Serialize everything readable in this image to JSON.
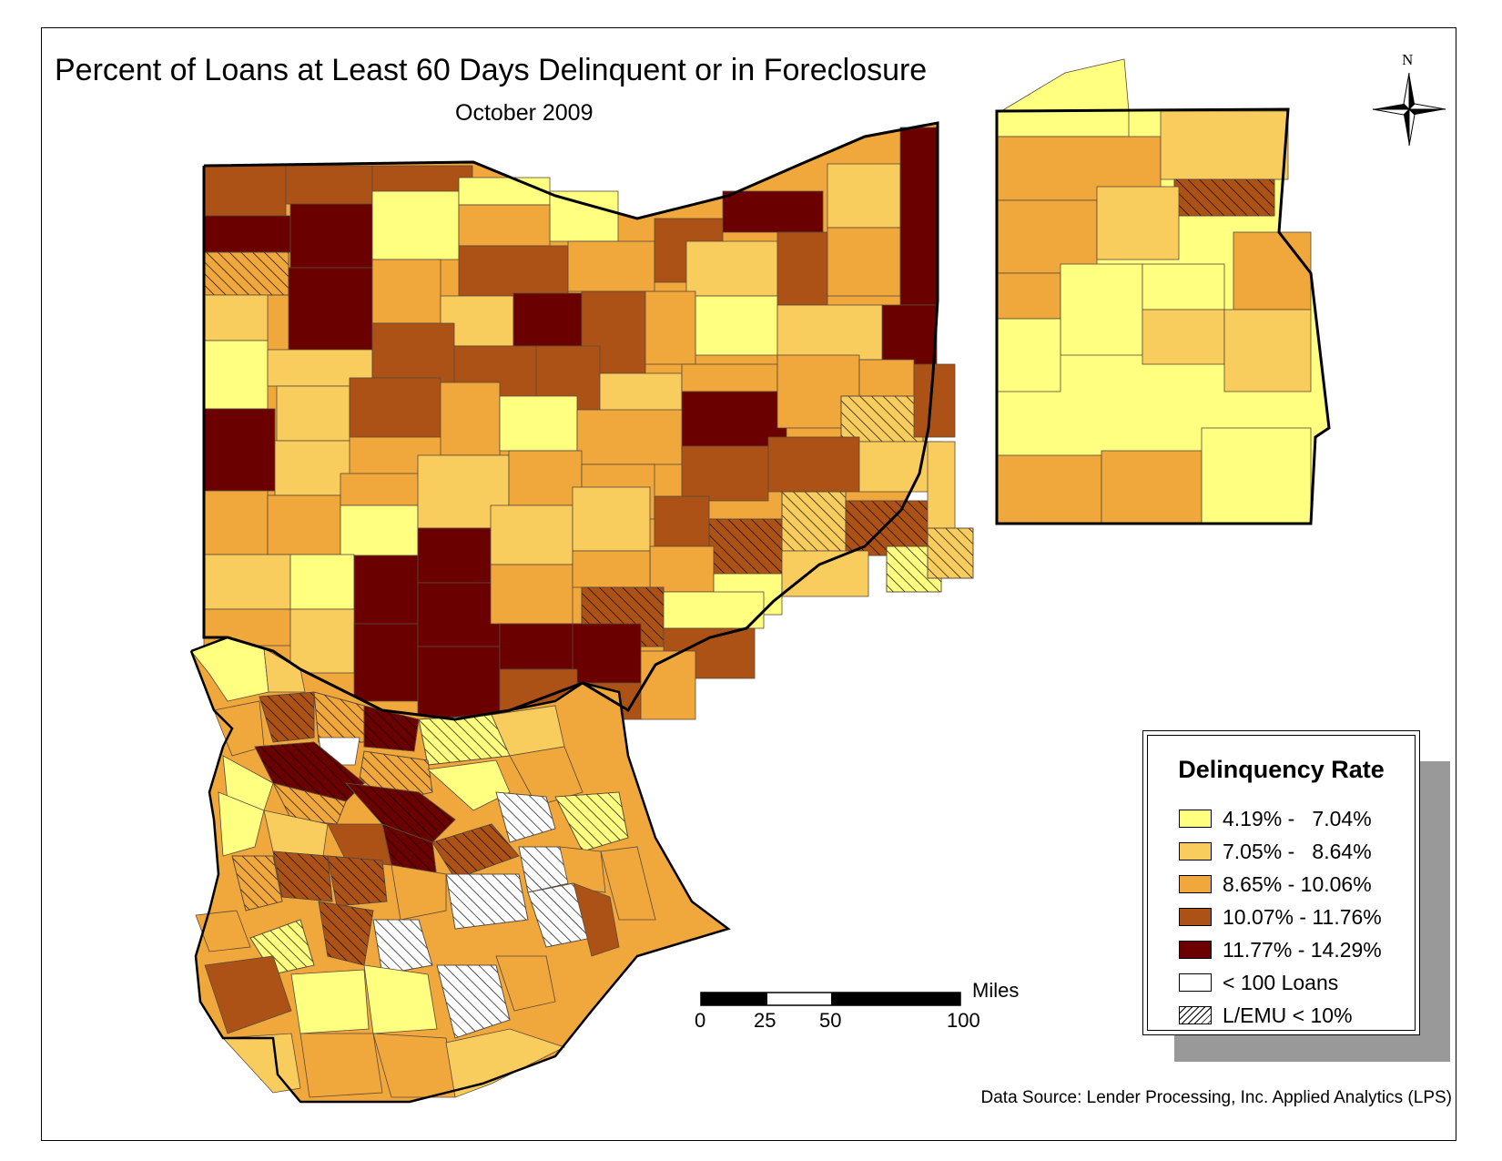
{
  "map": {
    "title": "Percent of Loans at Least 60 Days Delinquent or in Foreclosure",
    "subtitle": "October 2009",
    "source": "Data Source: Lender Processing, Inc. Applied Analytics (LPS)",
    "north_label": "N"
  },
  "legend": {
    "title": "Delinquency Rate",
    "items": [
      {
        "label": "4.19% -   7.04%",
        "color": "#ffff80",
        "hatched": false
      },
      {
        "label": "7.05% -   8.64%",
        "color": "#f9cd5d",
        "hatched": false
      },
      {
        "label": "8.65% - 10.06%",
        "color": "#f0a73c",
        "hatched": false
      },
      {
        "label": "10.07% - 11.76%",
        "color": "#ad5216",
        "hatched": false
      },
      {
        "label": "11.77% - 14.29%",
        "color": "#6b0000",
        "hatched": false
      },
      {
        "label": "< 100 Loans",
        "color": "#ffffff",
        "hatched": false
      },
      {
        "label": "L/EMU < 10%",
        "color": "#ffffff",
        "hatched": true
      }
    ]
  },
  "scale_bar": {
    "unit": "Miles",
    "ticks": [
      "0",
      "25",
      "50",
      "100"
    ]
  },
  "colors": {
    "class1": "#ffff80",
    "class2": "#f9cd5d",
    "class3": "#f0a73c",
    "class4": "#ad5216",
    "class5": "#6b0000",
    "no_data": "#ffffff",
    "shadow": "#999999"
  }
}
